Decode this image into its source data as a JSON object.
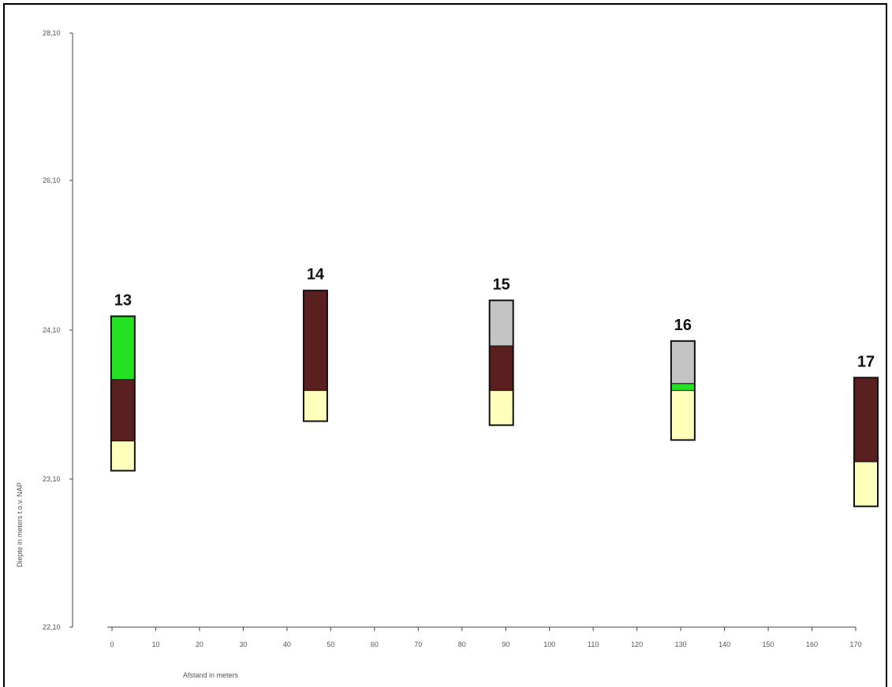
{
  "chart_data": {
    "type": "stacked-column-boreholes",
    "xlabel": "Afstand in meters",
    "ylabel": "Diepte in meters t.o.v. NAP",
    "xlim": [
      0,
      170
    ],
    "ylim": [
      22.1,
      28.1
    ],
    "x_ticks": [
      "0",
      "10",
      "20",
      "30",
      "40",
      "50",
      "60",
      "70",
      "80",
      "90",
      "100",
      "110",
      "120",
      "130",
      "140",
      "150",
      "160",
      "170"
    ],
    "y_ticks": [
      {
        "value": 28.1,
        "label": "28,10"
      },
      {
        "value": 26.1,
        "label": "26,10"
      },
      {
        "value": 24.1,
        "label": "24,10"
      },
      {
        "value": 23.1,
        "label": "23,10"
      },
      {
        "value": 22.1,
        "label": "22,10"
      }
    ],
    "colors": {
      "green": "#22e222",
      "brown": "#5a1f1f",
      "gray": "#c4c4c4",
      "yellow": "#ffffbc",
      "outline": "#111111"
    },
    "boreholes": [
      {
        "label": "13",
        "x": 2.5,
        "layers": [
          {
            "color": "green",
            "top": 25.24,
            "bottom": 24.6
          },
          {
            "color": "brown",
            "top": 24.6,
            "bottom": 23.98
          },
          {
            "color": "yellow",
            "top": 23.98,
            "bottom": 23.68
          }
        ]
      },
      {
        "label": "14",
        "x": 46.5,
        "layers": [
          {
            "color": "brown",
            "top": 25.5,
            "bottom": 24.49
          },
          {
            "color": "yellow",
            "top": 24.49,
            "bottom": 24.18
          }
        ]
      },
      {
        "label": "15",
        "x": 89,
        "layers": [
          {
            "color": "gray",
            "top": 25.4,
            "bottom": 24.94
          },
          {
            "color": "brown",
            "top": 24.94,
            "bottom": 24.49
          },
          {
            "color": "yellow",
            "top": 24.49,
            "bottom": 24.14
          }
        ]
      },
      {
        "label": "16",
        "x": 130.5,
        "layers": [
          {
            "color": "gray",
            "top": 24.99,
            "bottom": 24.56
          },
          {
            "color": "green",
            "top": 24.56,
            "bottom": 24.49
          },
          {
            "color": "yellow",
            "top": 24.49,
            "bottom": 23.99
          }
        ]
      },
      {
        "label": "17",
        "x": 173,
        "layers": [
          {
            "color": "brown",
            "top": 24.62,
            "bottom": 23.77
          },
          {
            "color": "yellow",
            "top": 23.77,
            "bottom": 23.32
          }
        ]
      }
    ]
  }
}
